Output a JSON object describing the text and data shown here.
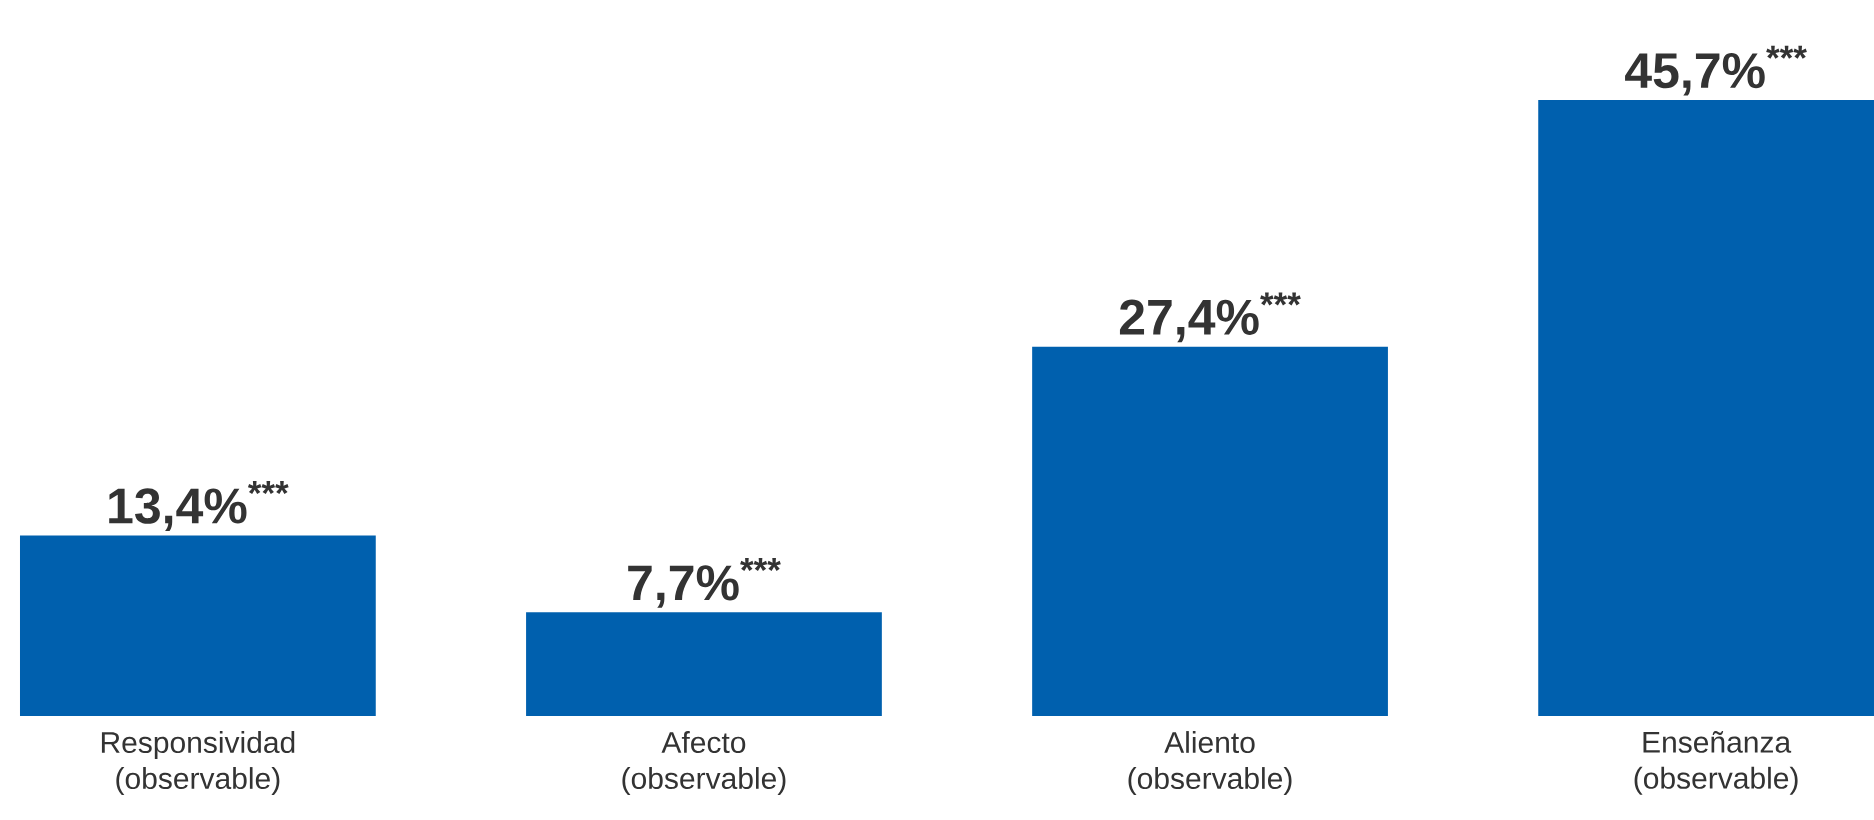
{
  "chart_data": {
    "type": "bar",
    "categories": [
      "Responsividad (observable)",
      "Afecto (observable)",
      "Aliento (observable)",
      "Enseñanza (observable)"
    ],
    "values": [
      13.4,
      7.7,
      27.4,
      45.7
    ],
    "value_labels": [
      "13,4%$^{***}$",
      "7,7%$^{***}$",
      "27,4%$^{***}$",
      "45,7%$^{***}$"
    ],
    "color": "#0060ae"
  }
}
